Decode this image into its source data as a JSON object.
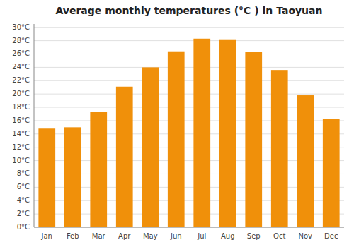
{
  "chart_data": {
    "type": "bar",
    "title": "Average monthly temperatures (°C ) in Taoyuan",
    "categories": [
      "Jan",
      "Feb",
      "Mar",
      "Apr",
      "May",
      "Jun",
      "Jul",
      "Aug",
      "Sep",
      "Oct",
      "Nov",
      "Dec"
    ],
    "values": [
      14.8,
      15.0,
      17.3,
      21.1,
      24.0,
      26.4,
      28.3,
      28.2,
      26.3,
      23.6,
      19.8,
      16.3
    ],
    "color": "#F0900A",
    "ylim": [
      0,
      30.5
    ],
    "yticks": [
      {
        "value": 0,
        "label": "0°C"
      },
      {
        "value": 2,
        "label": "2°C"
      },
      {
        "value": 4,
        "label": "4°C"
      },
      {
        "value": 6,
        "label": "6°C"
      },
      {
        "value": 8,
        "label": "8°C"
      },
      {
        "value": 10,
        "label": "10°C"
      },
      {
        "value": 12,
        "label": "12°C"
      },
      {
        "value": 14,
        "label": "14°C"
      },
      {
        "value": 16,
        "label": "16°C"
      },
      {
        "value": 18,
        "label": "18°C"
      },
      {
        "value": 20,
        "label": "20°C"
      },
      {
        "value": 22,
        "label": "22°C"
      },
      {
        "value": 24,
        "label": "24°C"
      },
      {
        "value": 26,
        "label": "26°C"
      },
      {
        "value": 28,
        "label": "28°C"
      },
      {
        "value": 30,
        "label": "30°C"
      }
    ],
    "grid": true
  }
}
